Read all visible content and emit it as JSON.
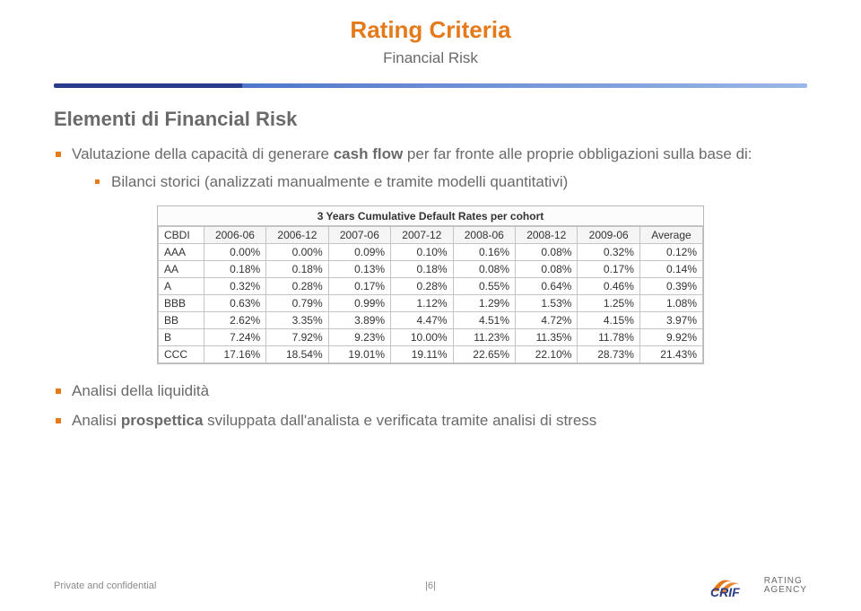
{
  "header": {
    "title": "Rating Criteria",
    "subtitle": "Financial Risk"
  },
  "section_title": "Elementi di Financial Risk",
  "bullets": {
    "b1_pre": "Valutazione della capacità di generare ",
    "b1_bold": "cash flow",
    "b1_post": " per far fronte alle proprie obbligazioni sulla base di:",
    "sub1": "Bilanci storici (analizzati manualmente e tramite modelli quantitativi)",
    "b2": "Analisi della liquidità",
    "b3_pre": "Analisi ",
    "b3_bold": "prospettica",
    "b3_post": " sviluppata dall'analista e verificata tramite analisi di stress"
  },
  "table": {
    "title": "3 Years Cumulative Default Rates per cohort",
    "row_header": "CBDI",
    "columns": [
      "2006-06",
      "2006-12",
      "2007-06",
      "2007-12",
      "2008-06",
      "2008-12",
      "2009-06",
      "Average"
    ],
    "row_labels": [
      "AAA",
      "AA",
      "A",
      "BBB",
      "BB",
      "B",
      "CCC"
    ],
    "rows": [
      [
        "0.00%",
        "0.00%",
        "0.09%",
        "0.10%",
        "0.16%",
        "0.08%",
        "0.32%",
        "0.12%"
      ],
      [
        "0.18%",
        "0.18%",
        "0.13%",
        "0.18%",
        "0.08%",
        "0.08%",
        "0.17%",
        "0.14%"
      ],
      [
        "0.32%",
        "0.28%",
        "0.17%",
        "0.28%",
        "0.55%",
        "0.64%",
        "0.46%",
        "0.39%"
      ],
      [
        "0.63%",
        "0.79%",
        "0.99%",
        "1.12%",
        "1.29%",
        "1.53%",
        "1.25%",
        "1.08%"
      ],
      [
        "2.62%",
        "3.35%",
        "3.89%",
        "4.47%",
        "4.51%",
        "4.72%",
        "4.15%",
        "3.97%"
      ],
      [
        "7.24%",
        "7.92%",
        "9.23%",
        "10.00%",
        "11.23%",
        "11.35%",
        "11.78%",
        "9.92%"
      ],
      [
        "17.16%",
        "18.54%",
        "19.01%",
        "19.11%",
        "22.65%",
        "22.10%",
        "28.73%",
        "21.43%"
      ]
    ]
  },
  "footer": {
    "left": "Private and confidential",
    "center": "|6|",
    "logo_text_top": "RATING",
    "logo_text_bottom": "AGENCY"
  },
  "colors": {
    "accent_orange": "#e47a1a",
    "text_gray": "#6a6a6a",
    "bar_dark": "#2a3c89",
    "bar_light": "#9ab7e8",
    "table_border": "#c4c4c4"
  }
}
